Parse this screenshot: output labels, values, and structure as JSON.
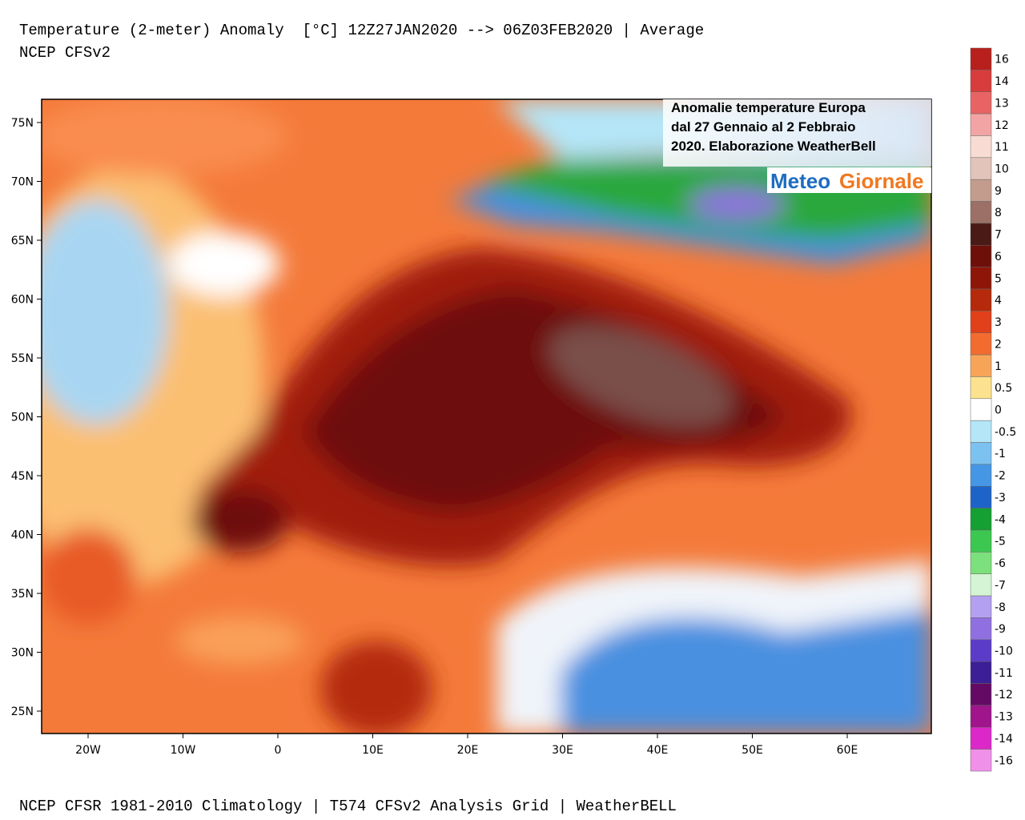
{
  "header": {
    "title": "Temperature (2-meter) Anomaly  [°C] 12Z27JAN2020 --> 06Z03FEB2020 | Average",
    "subtitle": "NCEP CFSv2"
  },
  "map": {
    "lat_ticks": [
      "75N",
      "70N",
      "65N",
      "60N",
      "55N",
      "50N",
      "45N",
      "40N",
      "35N",
      "30N",
      "25N"
    ],
    "lon_ticks": [
      "20W",
      "10W",
      "0",
      "10E",
      "20E",
      "30E",
      "40E",
      "50E",
      "60E"
    ]
  },
  "overlay": {
    "lines": [
      "Anomalie temperature Europa",
      "dal 27 Gennaio al 2 Febbraio",
      "2020. Elaborazione WeatherBell"
    ]
  },
  "logo": {
    "meteo": "Meteo",
    "giornale": "Giornale"
  },
  "legend": {
    "items": [
      {
        "label": "16",
        "color": "#b8201e"
      },
      {
        "label": "14",
        "color": "#d83c3c"
      },
      {
        "label": "13",
        "color": "#e86464"
      },
      {
        "label": "12",
        "color": "#f2a4a4"
      },
      {
        "label": "11",
        "color": "#f8dcd4"
      },
      {
        "label": "10",
        "color": "#e2c4ba"
      },
      {
        "label": "9",
        "color": "#c49c8e"
      },
      {
        "label": "8",
        "color": "#9c7066"
      },
      {
        "label": "7",
        "color": "#4a1a16"
      },
      {
        "label": "6",
        "color": "#6e0f0a"
      },
      {
        "label": "5",
        "color": "#8e1608"
      },
      {
        "label": "4",
        "color": "#b42a0a"
      },
      {
        "label": "3",
        "color": "#e0401a"
      },
      {
        "label": "2",
        "color": "#f26c30"
      },
      {
        "label": "1",
        "color": "#f8a458"
      },
      {
        "label": "0.5",
        "color": "#fce28e"
      },
      {
        "label": "0",
        "color": "#ffffff"
      },
      {
        "label": "-0.5",
        "color": "#b4e6f8"
      },
      {
        "label": "-1",
        "color": "#7cc2f0"
      },
      {
        "label": "-2",
        "color": "#4696e6"
      },
      {
        "label": "-3",
        "color": "#1e64c8"
      },
      {
        "label": "-4",
        "color": "#14a032"
      },
      {
        "label": "-5",
        "color": "#3cc850"
      },
      {
        "label": "-6",
        "color": "#7ce07c"
      },
      {
        "label": "-7",
        "color": "#d4f4d4"
      },
      {
        "label": "-8",
        "color": "#b4a0f0"
      },
      {
        "label": "-9",
        "color": "#9070e0"
      },
      {
        "label": "-10",
        "color": "#5a3cc8"
      },
      {
        "label": "-11",
        "color": "#3c1e96"
      },
      {
        "label": "-12",
        "color": "#640a64"
      },
      {
        "label": "-13",
        "color": "#a0148c"
      },
      {
        "label": "-14",
        "color": "#dc28c8"
      },
      {
        "label": "-16",
        "color": "#f090e8"
      }
    ]
  },
  "footer": "NCEP CFSR 1981-2010 Climatology | T574 CFSv2 Analysis Grid | WeatherBELL"
}
